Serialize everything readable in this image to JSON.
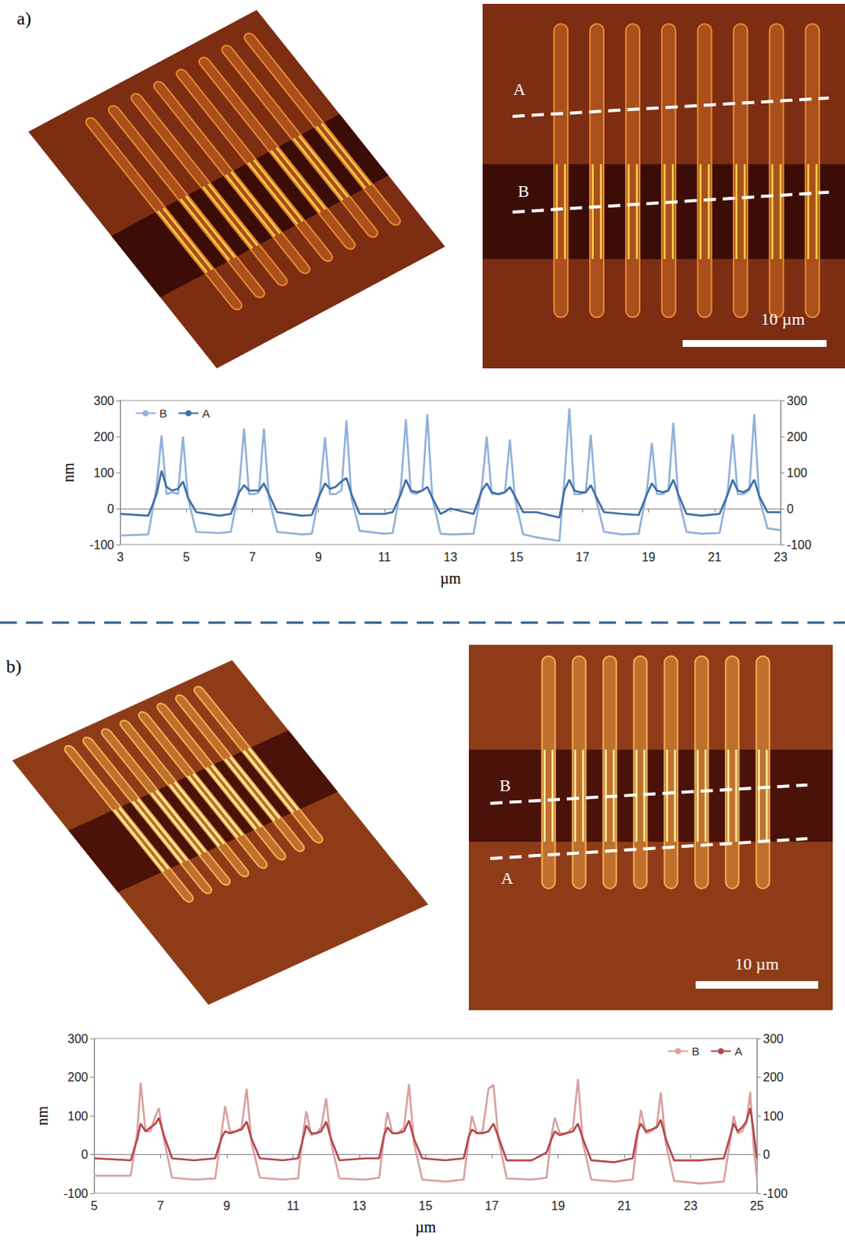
{
  "chart_data": [
    {
      "type": "line",
      "x": [
        3,
        3.85,
        4.1,
        4.25,
        4.4,
        4.57,
        4.75,
        4.9,
        5.05,
        5.3,
        6,
        6.35,
        6.6,
        6.75,
        6.9,
        7.05,
        7.2,
        7.35,
        7.5,
        7.75,
        8.5,
        8.8,
        9.05,
        9.2,
        9.35,
        9.52,
        9.7,
        9.85,
        10,
        10.25,
        11,
        11.25,
        11.5,
        11.65,
        11.8,
        11.97,
        12.15,
        12.3,
        12.45,
        12.7,
        13,
        13.7,
        13.95,
        14.1,
        14.25,
        14.45,
        14.65,
        14.8,
        14.95,
        15.2,
        15.6,
        16.3,
        16.45,
        16.6,
        16.75,
        16.92,
        17.1,
        17.25,
        17.4,
        17.65,
        18.2,
        18.7,
        18.95,
        19.1,
        19.25,
        19.42,
        19.6,
        19.75,
        19.9,
        20.15,
        20.6,
        21.15,
        21.4,
        21.55,
        21.7,
        21.87,
        22.05,
        22.2,
        22.35,
        22.6,
        23
      ],
      "series": [
        {
          "name": "B",
          "color": "#92b1d9",
          "values": [
            -75,
            -72,
            60,
            203,
            40,
            45,
            40,
            200,
            30,
            -65,
            -68,
            -65,
            60,
            222,
            40,
            40,
            45,
            222,
            30,
            -65,
            -72,
            -70,
            50,
            198,
            40,
            40,
            50,
            245,
            30,
            -62,
            -70,
            -68,
            60,
            248,
            45,
            40,
            50,
            262,
            30,
            -70,
            -72,
            -70,
            60,
            200,
            40,
            40,
            45,
            192,
            30,
            -72,
            -80,
            -90,
            80,
            278,
            40,
            40,
            45,
            205,
            30,
            -65,
            -72,
            -70,
            50,
            182,
            40,
            40,
            50,
            238,
            30,
            -65,
            -70,
            -68,
            50,
            206,
            40,
            40,
            50,
            262,
            30,
            -55,
            -60
          ]
        },
        {
          "name": "A",
          "color": "#3e6ea6",
          "values": [
            -15,
            -20,
            40,
            105,
            60,
            50,
            55,
            75,
            30,
            -10,
            -20,
            -15,
            45,
            65,
            50,
            50,
            50,
            70,
            40,
            -10,
            -20,
            -18,
            40,
            70,
            55,
            60,
            75,
            85,
            40,
            -15,
            -15,
            -10,
            40,
            80,
            50,
            45,
            50,
            60,
            30,
            -15,
            0,
            -15,
            50,
            70,
            45,
            40,
            45,
            60,
            35,
            -10,
            -10,
            -25,
            50,
            80,
            50,
            45,
            45,
            65,
            35,
            -10,
            -15,
            -18,
            40,
            70,
            50,
            45,
            50,
            80,
            40,
            -15,
            -20,
            -15,
            40,
            80,
            50,
            45,
            55,
            80,
            35,
            -10,
            -10
          ]
        }
      ],
      "xlabel": "µm",
      "ylabel": "nm",
      "xlim": [
        3,
        23
      ],
      "xticks": [
        3,
        5,
        7,
        9,
        11,
        13,
        15,
        17,
        19,
        21,
        23
      ],
      "ylim": [
        -100,
        300
      ],
      "yticks": [
        -100,
        0,
        100,
        200,
        300
      ],
      "y2lim": [
        -100,
        300
      ],
      "y2ticks": [
        -100,
        0,
        100,
        200,
        300
      ],
      "grid": false,
      "legend": "upper left"
    },
    {
      "type": "line",
      "x": [
        5,
        6.1,
        6.3,
        6.4,
        6.55,
        6.7,
        6.85,
        6.95,
        7.1,
        7.35,
        8,
        8.65,
        8.85,
        8.95,
        9.1,
        9.28,
        9.45,
        9.6,
        9.75,
        10,
        10.7,
        11.15,
        11.3,
        11.4,
        11.55,
        11.7,
        11.85,
        12,
        12.15,
        12.4,
        13.2,
        13.6,
        13.75,
        13.85,
        14,
        14.17,
        14.35,
        14.5,
        14.65,
        14.9,
        15.6,
        16.15,
        16.3,
        16.4,
        16.55,
        16.72,
        16.9,
        17.05,
        17.2,
        17.45,
        18.2,
        18.65,
        18.8,
        18.9,
        19.05,
        19.25,
        19.45,
        19.6,
        19.75,
        20,
        20.7,
        21.25,
        21.4,
        21.5,
        21.65,
        21.82,
        21.98,
        22.1,
        22.25,
        22.5,
        23.3,
        24,
        24.2,
        24.3,
        24.42,
        24.55,
        24.68,
        24.8,
        24.9,
        25
      ],
      "series": [
        {
          "name": "B",
          "color": "#d9a0a0",
          "values": [
            -55,
            -55,
            60,
            185,
            60,
            60,
            100,
            120,
            40,
            -60,
            -65,
            -62,
            60,
            125,
            60,
            60,
            70,
            170,
            30,
            -60,
            -65,
            -62,
            50,
            112,
            50,
            55,
            70,
            145,
            30,
            -62,
            -65,
            -60,
            50,
            110,
            55,
            55,
            70,
            182,
            30,
            -65,
            -70,
            -65,
            40,
            100,
            55,
            60,
            170,
            180,
            40,
            -62,
            -65,
            -60,
            50,
            95,
            55,
            55,
            70,
            195,
            30,
            -65,
            -70,
            -65,
            50,
            115,
            55,
            60,
            75,
            160,
            30,
            -68,
            -75,
            -70,
            40,
            100,
            55,
            60,
            80,
            162,
            20,
            -60
          ]
        },
        {
          "name": "A",
          "color": "#b5474a",
          "values": [
            -10,
            -15,
            40,
            80,
            60,
            70,
            80,
            95,
            50,
            -10,
            -15,
            -10,
            45,
            60,
            55,
            60,
            65,
            85,
            40,
            -10,
            -15,
            -10,
            40,
            75,
            55,
            55,
            60,
            85,
            40,
            -15,
            -10,
            -10,
            50,
            70,
            55,
            55,
            60,
            88,
            40,
            -10,
            -15,
            -10,
            45,
            65,
            55,
            55,
            60,
            80,
            45,
            -15,
            -15,
            5,
            40,
            60,
            50,
            55,
            60,
            80,
            40,
            -15,
            -20,
            -10,
            60,
            80,
            60,
            65,
            70,
            90,
            40,
            -15,
            -15,
            -10,
            50,
            80,
            60,
            70,
            85,
            120,
            60,
            -10
          ]
        }
      ],
      "xlabel": "µm",
      "ylabel": "nm",
      "xlim": [
        5,
        25
      ],
      "xticks": [
        5,
        7,
        9,
        11,
        13,
        15,
        17,
        19,
        21,
        23,
        25
      ],
      "ylim": [
        -100,
        300
      ],
      "yticks": [
        -100,
        0,
        100,
        200,
        300
      ],
      "y2lim": [
        -100,
        300
      ],
      "y2ticks": [
        -100,
        0,
        100,
        200,
        300
      ],
      "grid": false,
      "legend": "upper right"
    }
  ],
  "panels": [
    {
      "label": "a)",
      "cut_lines": {
        "upper": "A",
        "lower": "B"
      },
      "scale_bar": "10 µm"
    },
    {
      "label": "b)",
      "cut_lines": {
        "upper": "B",
        "lower": "A"
      },
      "scale_bar": "10 µm"
    }
  ]
}
